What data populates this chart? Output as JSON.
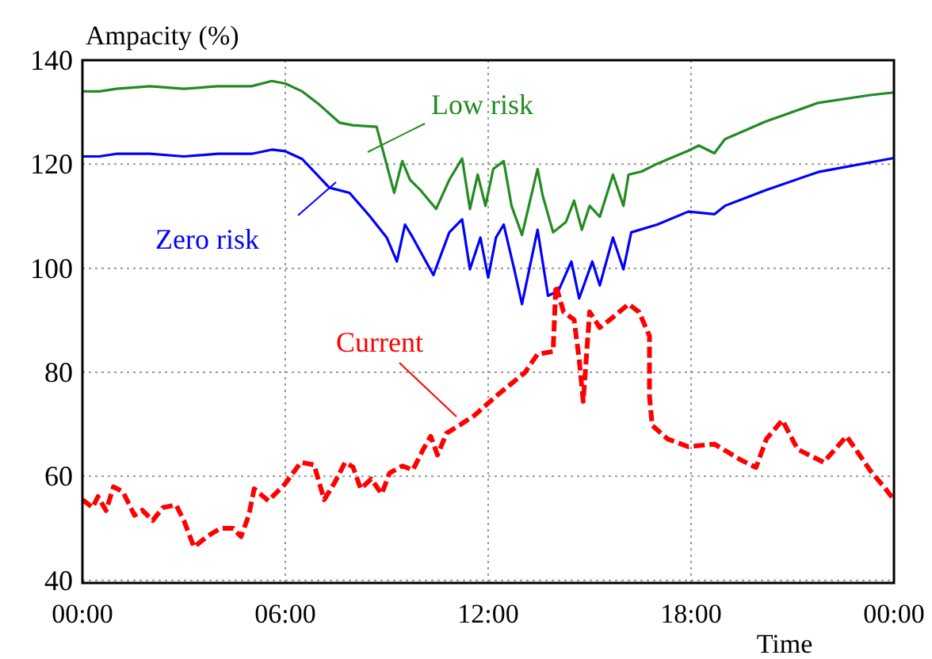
{
  "chart_data": {
    "type": "line",
    "xlabel": "Time",
    "ylabel": "Ampacity (%)",
    "xlim": [
      0,
      24
    ],
    "ylim": [
      39.5,
      140
    ],
    "xticks": [
      {
        "value": 0,
        "label": "00:00"
      },
      {
        "value": 6,
        "label": "06:00"
      },
      {
        "value": 12,
        "label": "12:00"
      },
      {
        "value": 18,
        "label": "18:00"
      },
      {
        "value": 24,
        "label": "00:00"
      }
    ],
    "yticks": [
      40,
      60,
      80,
      100,
      120,
      140
    ],
    "grid": true,
    "legend": false,
    "series": [
      {
        "name": "Low risk",
        "color": "#228b22",
        "line_style": "solid",
        "x": [
          0,
          0.5,
          1,
          2,
          3,
          4,
          5,
          5.6,
          6,
          6.5,
          7,
          7.6,
          8,
          8.7,
          9.22,
          9.46,
          9.69,
          10,
          10.46,
          10.85,
          11.23,
          11.46,
          11.69,
          11.92,
          12.15,
          12.46,
          12.69,
          13,
          13.46,
          13.61,
          13.92,
          14.3,
          14.54,
          14.77,
          15,
          15.3,
          15.69,
          16,
          16.15,
          16.54,
          17,
          17.92,
          18.23,
          18.69,
          19,
          20.2,
          21.76,
          23.3,
          24
        ],
        "values": [
          134,
          134,
          134.5,
          135,
          134.5,
          135,
          135,
          136,
          135.5,
          134,
          131.5,
          128,
          127.5,
          127.2,
          114.5,
          120.6,
          117,
          115,
          111.4,
          117,
          121.1,
          111.4,
          118,
          112,
          119.1,
          120.6,
          112,
          106.4,
          119.1,
          114,
          106.9,
          108.9,
          113,
          107.4,
          112,
          109.9,
          118,
          112,
          118,
          118.6,
          120.1,
          122.6,
          123.6,
          122.1,
          124.8,
          128.2,
          131.8,
          133.3,
          133.8
        ]
      },
      {
        "name": "Zero risk",
        "color": "#0000ff",
        "line_style": "solid",
        "x": [
          0,
          0.5,
          1,
          2,
          3,
          4,
          5,
          5.6,
          6,
          6.5,
          7.3,
          7.9,
          8.5,
          9,
          9.3,
          9.54,
          9.77,
          10.38,
          10.85,
          11.23,
          11.46,
          11.77,
          12,
          12.23,
          12.46,
          12.77,
          13,
          13.46,
          13.77,
          14.08,
          14.46,
          14.69,
          15.08,
          15.3,
          15.69,
          16,
          16.23,
          17,
          17.92,
          18.69,
          19,
          20.2,
          21.76,
          24
        ],
        "values": [
          121.5,
          121.5,
          122,
          122,
          121.5,
          122,
          122,
          122.8,
          122.5,
          121,
          115.5,
          114.5,
          110,
          105.9,
          101.3,
          108.4,
          105.9,
          98.7,
          106.9,
          109.4,
          99.8,
          105.9,
          98.2,
          105.9,
          108.4,
          99.8,
          93.1,
          107.4,
          94.7,
          95.7,
          101.3,
          94.2,
          101.3,
          96.7,
          105.9,
          99.8,
          106.9,
          108.4,
          110.9,
          110.4,
          112,
          115,
          118.5,
          121.2
        ]
      },
      {
        "name": "Current",
        "color": "#ff0000",
        "line_style": "dashed",
        "x": [
          0,
          0.3,
          0.46,
          0.7,
          0.92,
          1.2,
          1.54,
          1.77,
          2.08,
          2.38,
          2.77,
          3,
          3.3,
          3.7,
          4.08,
          4.46,
          4.69,
          4.92,
          5.08,
          5.5,
          6,
          6.46,
          6.85,
          7.15,
          7.46,
          7.77,
          8,
          8.23,
          8.54,
          8.85,
          9.08,
          9.46,
          9.77,
          10.08,
          10.3,
          10.5,
          10.77,
          11.15,
          11.61,
          12.23,
          13.08,
          13.46,
          13.92,
          14,
          14.23,
          14.54,
          14.69,
          14.81,
          15,
          15.3,
          15.6,
          16.15,
          16.46,
          16.77,
          16.77,
          16.85,
          17.3,
          17.92,
          18.69,
          19.46,
          19.92,
          20.23,
          20.7,
          21.15,
          21.92,
          22.6,
          22.92,
          23.3,
          23.7,
          24
        ],
        "values": [
          55.5,
          54,
          56.1,
          53.4,
          58,
          57,
          52.5,
          53.5,
          51.5,
          54,
          54.5,
          51.5,
          46.4,
          48.5,
          50,
          50,
          48.4,
          52.5,
          57.6,
          55.3,
          58.6,
          62.7,
          62.2,
          55.5,
          58.8,
          62.7,
          61.8,
          57.6,
          59.5,
          56.6,
          60.6,
          62,
          61.2,
          65.2,
          67.7,
          64.1,
          68.3,
          69.8,
          71.8,
          75.4,
          79.9,
          83.5,
          84,
          96.7,
          91.6,
          90.1,
          82.5,
          74.4,
          91.6,
          88.6,
          90.1,
          93.1,
          91.6,
          87,
          75.4,
          69.8,
          67.2,
          65.7,
          66.2,
          63.2,
          61.7,
          67.2,
          70.8,
          65.2,
          62.7,
          67.7,
          64.7,
          61.1,
          58,
          55.5
        ]
      }
    ]
  }
}
